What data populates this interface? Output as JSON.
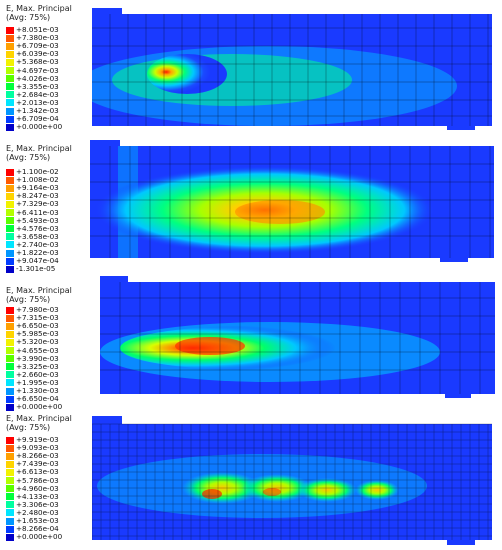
{
  "panels": [
    {
      "legend": {
        "title_line1": "E, Max. Principal",
        "title_line2": "(Avg: 75%)",
        "values": [
          "+8.051e-03",
          "+7.380e-03",
          "+6.709e-03",
          "+6.039e-03",
          "+5.368e-03",
          "+4.697e-03",
          "+4.026e-03",
          "+3.355e-03",
          "+2.684e-03",
          "+2.013e-03",
          "+1.342e-03",
          "+6.709e-04",
          "+0.000e+00"
        ]
      }
    },
    {
      "legend": {
        "title_line1": "E, Max. Principal",
        "title_line2": "(Avg: 75%)",
        "values": [
          "+1.100e-02",
          "+1.008e-02",
          "+9.164e-03",
          "+8.247e-03",
          "+7.329e-03",
          "+6.411e-03",
          "+5.493e-03",
          "+4.576e-03",
          "+3.658e-03",
          "+2.740e-03",
          "+1.822e-03",
          "+9.047e-04",
          "-1.301e-05"
        ]
      }
    },
    {
      "legend": {
        "title_line1": "E, Max. Principal",
        "title_line2": "(Avg: 75%)",
        "values": [
          "+7.980e-03",
          "+7.315e-03",
          "+6.650e-03",
          "+5.985e-03",
          "+5.320e-03",
          "+4.655e-03",
          "+3.990e-03",
          "+3.325e-03",
          "+2.660e-03",
          "+1.995e-03",
          "+1.330e-03",
          "+6.650e-04",
          "+0.000e+00"
        ]
      }
    },
    {
      "legend": {
        "title_line1": "E, Max. Principal",
        "title_line2": "(Avg: 75%)",
        "values": [
          "+9.919e-03",
          "+9.093e-03",
          "+8.266e-03",
          "+7.439e-03",
          "+6.613e-03",
          "+5.786e-03",
          "+4.960e-03",
          "+4.133e-03",
          "+3.306e-03",
          "+2.480e-03",
          "+1.653e-03",
          "+8.266e-04",
          "+0.000e+00"
        ]
      }
    }
  ],
  "colors": {
    "scale": [
      "#ff0000",
      "#ff5a00",
      "#ffa000",
      "#ffd400",
      "#f2f200",
      "#b4ff00",
      "#5aff00",
      "#00ff3c",
      "#00ffa0",
      "#00e6ff",
      "#0096ff",
      "#003cff",
      "#0000c8"
    ],
    "beam_base": "#1a3aff",
    "mesh": "#000000"
  }
}
